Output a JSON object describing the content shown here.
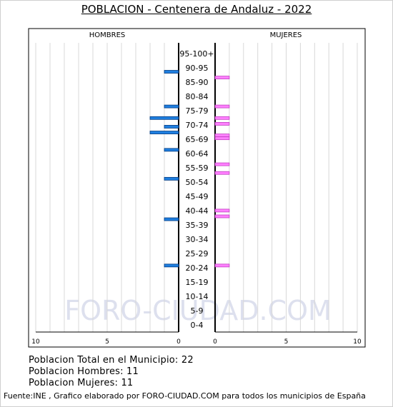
{
  "header": {
    "title": "POBLACION - Centenera de Andaluz - 2022"
  },
  "stats": {
    "total": "Poblacion Total en el Municipio: 22",
    "men": "Poblacion Hombres: 11",
    "women": "Poblacion Mujeres: 11"
  },
  "footer": {
    "source": "Fuente:INE , Grafico elaborado por FORO-CIUDAD.COM para todos los municipios de España"
  },
  "watermark": "FORO-CIUDAD.COM",
  "colors": {
    "men": "#1f7fe0",
    "women": "#ff80ff",
    "grid": "#d8d8d8",
    "watermark": "#dde0ee"
  },
  "chart_data": {
    "type": "bar",
    "orientation": "horizontal-pyramid",
    "panels": {
      "left": "HOMBRES",
      "right": "MUJERES"
    },
    "categories": [
      "95-100+",
      "90-95",
      "85-90",
      "80-84",
      "75-79",
      "70-74",
      "65-69",
      "60-64",
      "55-59",
      "50-54",
      "45-49",
      "40-44",
      "35-39",
      "30-34",
      "25-29",
      "20-24",
      "15-19",
      "10-14",
      "5-9",
      "0-4"
    ],
    "xlim": [
      0,
      10
    ],
    "x_ticks": [
      10,
      5,
      0
    ],
    "x_ticks_right": [
      0,
      5,
      10
    ],
    "grid": true,
    "bars": [
      {
        "series": "HOMBRES",
        "group": "90-95",
        "age": 90,
        "value": 1
      },
      {
        "series": "HOMBRES",
        "group": "75-79",
        "age": 78,
        "value": 1
      },
      {
        "series": "HOMBRES",
        "group": "70-74",
        "age": 74,
        "value": 2
      },
      {
        "series": "HOMBRES",
        "group": "70-74",
        "age": 71,
        "value": 1
      },
      {
        "series": "HOMBRES",
        "group": "65-69",
        "age": 69,
        "value": 2
      },
      {
        "series": "HOMBRES",
        "group": "60-64",
        "age": 63,
        "value": 1
      },
      {
        "series": "HOMBRES",
        "group": "50-54",
        "age": 53,
        "value": 1
      },
      {
        "series": "HOMBRES",
        "group": "35-39",
        "age": 39,
        "value": 1
      },
      {
        "series": "HOMBRES",
        "group": "20-24",
        "age": 23,
        "value": 1
      },
      {
        "series": "MUJERES",
        "group": "85-90",
        "age": 88,
        "value": 1
      },
      {
        "series": "MUJERES",
        "group": "75-79",
        "age": 78,
        "value": 1
      },
      {
        "series": "MUJERES",
        "group": "70-74",
        "age": 74,
        "value": 1
      },
      {
        "series": "MUJERES",
        "group": "70-74",
        "age": 72,
        "value": 1
      },
      {
        "series": "MUJERES",
        "group": "65-69",
        "age": 68,
        "value": 1
      },
      {
        "series": "MUJERES",
        "group": "65-69",
        "age": 67,
        "value": 1
      },
      {
        "series": "MUJERES",
        "group": "55-59",
        "age": 58,
        "value": 1
      },
      {
        "series": "MUJERES",
        "group": "55-59",
        "age": 55,
        "value": 1
      },
      {
        "series": "MUJERES",
        "group": "40-44",
        "age": 42,
        "value": 1
      },
      {
        "series": "MUJERES",
        "group": "35-39",
        "age": 40,
        "value": 1
      },
      {
        "series": "MUJERES",
        "group": "20-24",
        "age": 23,
        "value": 1
      }
    ]
  }
}
